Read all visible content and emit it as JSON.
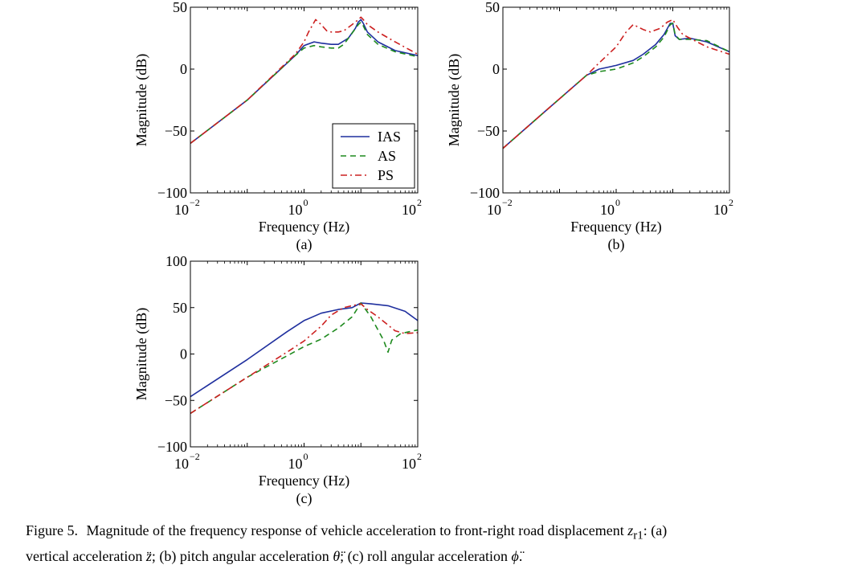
{
  "chart_data": [
    {
      "type": "line",
      "panel_label": "(a)",
      "xlabel": "Frequency (Hz)",
      "ylabel": "Magnitude (dB)",
      "xscale": "log",
      "xlim": [
        0.01,
        100
      ],
      "ylim": [
        -100,
        50
      ],
      "xticks": [
        {
          "base": "10",
          "exp": "−2",
          "value": 0.01
        },
        {
          "base": "10",
          "exp": "0",
          "value": 1
        },
        {
          "base": "10",
          "exp": "2",
          "value": 100
        }
      ],
      "yticks": [
        {
          "label": "50",
          "value": 50
        },
        {
          "label": "0",
          "value": 0
        },
        {
          "label": "−50",
          "value": -50
        },
        {
          "label": "−100",
          "value": -100
        }
      ],
      "legend": {
        "position": "lower-right",
        "entries": [
          "IAS",
          "AS",
          "PS"
        ]
      },
      "series": [
        {
          "name": "IAS",
          "color": "#1f2f9e",
          "dash": "solid",
          "x": [
            0.01,
            0.1,
            0.7,
            1,
            1.5,
            2,
            3,
            4,
            6,
            8,
            9,
            10,
            11,
            13,
            20,
            40,
            100
          ],
          "y": [
            -60,
            -25,
            11,
            19,
            22,
            21,
            20,
            20,
            25,
            33,
            38,
            40,
            37,
            30,
            22,
            15,
            11
          ]
        },
        {
          "name": "AS",
          "color": "#1e8a1e",
          "dash": "dashed",
          "x": [
            0.01,
            0.1,
            0.7,
            1,
            1.5,
            2,
            3,
            4,
            5,
            7,
            9,
            10,
            11,
            13,
            20,
            40,
            100
          ],
          "y": [
            -60,
            -25,
            11,
            17,
            19,
            18,
            17,
            17,
            20,
            29,
            36,
            38,
            35,
            28,
            20,
            14,
            10
          ]
        },
        {
          "name": "PS",
          "color": "#cc2020",
          "dash": "dashdot",
          "x": [
            0.01,
            0.1,
            0.7,
            1,
            1.2,
            1.6,
            2,
            2.5,
            3,
            4,
            5,
            7,
            9,
            10,
            11,
            13,
            20,
            40,
            100
          ],
          "y": [
            -60,
            -25,
            12,
            22,
            30,
            40,
            36,
            31,
            30,
            30,
            31,
            36,
            40,
            42,
            40,
            36,
            30,
            22,
            12
          ]
        }
      ]
    },
    {
      "type": "line",
      "panel_label": "(b)",
      "xlabel": "Frequency (Hz)",
      "ylabel": "Magnitude (dB)",
      "xscale": "log",
      "xlim": [
        0.01,
        100
      ],
      "ylim": [
        -100,
        50
      ],
      "xticks": [
        {
          "base": "10",
          "exp": "−2",
          "value": 0.01
        },
        {
          "base": "10",
          "exp": "0",
          "value": 1
        },
        {
          "base": "10",
          "exp": "2",
          "value": 100
        }
      ],
      "yticks": [
        {
          "label": "50",
          "value": 50
        },
        {
          "label": "0",
          "value": 0
        },
        {
          "label": "−50",
          "value": -50
        },
        {
          "label": "−100",
          "value": -100
        }
      ],
      "series": [
        {
          "name": "IAS",
          "color": "#1f2f9e",
          "dash": "solid",
          "x": [
            0.01,
            0.05,
            0.3,
            0.5,
            1,
            2,
            3,
            5,
            7,
            9,
            10,
            11,
            13,
            20,
            40,
            100
          ],
          "y": [
            -64,
            -36,
            -5,
            0,
            3,
            7,
            12,
            20,
            28,
            37,
            37,
            27,
            24,
            25,
            22,
            14
          ]
        },
        {
          "name": "AS",
          "color": "#1e8a1e",
          "dash": "dashed",
          "x": [
            0.01,
            0.05,
            0.3,
            0.5,
            1,
            2,
            3,
            5,
            7,
            9,
            10,
            11,
            13,
            20,
            40,
            100
          ],
          "y": [
            -64,
            -36,
            -5,
            -2,
            0,
            5,
            10,
            18,
            26,
            36,
            37,
            28,
            24,
            24,
            23,
            14
          ]
        },
        {
          "name": "PS",
          "color": "#cc2020",
          "dash": "dashdot",
          "x": [
            0.01,
            0.05,
            0.3,
            0.5,
            1,
            1.5,
            2,
            3,
            4,
            6,
            8,
            10,
            12,
            15,
            20,
            40,
            100
          ],
          "y": [
            -64,
            -36,
            -5,
            5,
            18,
            30,
            36,
            32,
            30,
            33,
            38,
            40,
            34,
            28,
            25,
            18,
            12
          ]
        }
      ]
    },
    {
      "type": "line",
      "panel_label": "(c)",
      "xlabel": "Frequency (Hz)",
      "ylabel": "Magnitude (dB)",
      "xscale": "log",
      "xlim": [
        0.01,
        100
      ],
      "ylim": [
        -100,
        100
      ],
      "xticks": [
        {
          "base": "10",
          "exp": "−2",
          "value": 0.01
        },
        {
          "base": "10",
          "exp": "0",
          "value": 1
        },
        {
          "base": "10",
          "exp": "2",
          "value": 100
        }
      ],
      "yticks": [
        {
          "label": "100",
          "value": 100
        },
        {
          "label": "50",
          "value": 50
        },
        {
          "label": "0",
          "value": 0
        },
        {
          "label": "−50",
          "value": -50
        },
        {
          "label": "−100",
          "value": -100
        }
      ],
      "series": [
        {
          "name": "IAS",
          "color": "#1f2f9e",
          "dash": "solid",
          "x": [
            0.01,
            0.1,
            0.5,
            1,
            2,
            4,
            7,
            10,
            15,
            30,
            60,
            100
          ],
          "y": [
            -46,
            -6,
            24,
            36,
            44,
            48,
            50,
            55,
            54,
            52,
            46,
            36
          ]
        },
        {
          "name": "AS",
          "color": "#1e8a1e",
          "dash": "dashed",
          "x": [
            0.01,
            0.1,
            0.5,
            1,
            2,
            4,
            7,
            10,
            15,
            25,
            30,
            35,
            50,
            100
          ],
          "y": [
            -64,
            -25,
            -2,
            8,
            16,
            28,
            40,
            55,
            40,
            15,
            2,
            15,
            22,
            26
          ]
        },
        {
          "name": "PS",
          "color": "#cc2020",
          "dash": "dashdot",
          "x": [
            0.01,
            0.1,
            0.5,
            1,
            2,
            3,
            5,
            7,
            10,
            13,
            20,
            40,
            60,
            100
          ],
          "y": [
            -64,
            -25,
            2,
            14,
            30,
            42,
            50,
            52,
            54,
            48,
            40,
            25,
            22,
            23
          ]
        }
      ]
    }
  ],
  "caption": {
    "prefix": "Figure 5.",
    "line1": "Magnitude of the frequency response of vehicle acceleration to front-right road displacement",
    "symbol_z": "z",
    "symbol_sub": "r1",
    "line1_end": ": (a)",
    "line2_a": "vertical acceleration",
    "sym_a": "z̈",
    "line2_b": "; (b) pitch angular acceleration",
    "sym_b": "θ̈",
    "line2_c": "; (c) roll angular acceleration",
    "sym_c": "ϕ̈",
    "line2_end": "."
  }
}
